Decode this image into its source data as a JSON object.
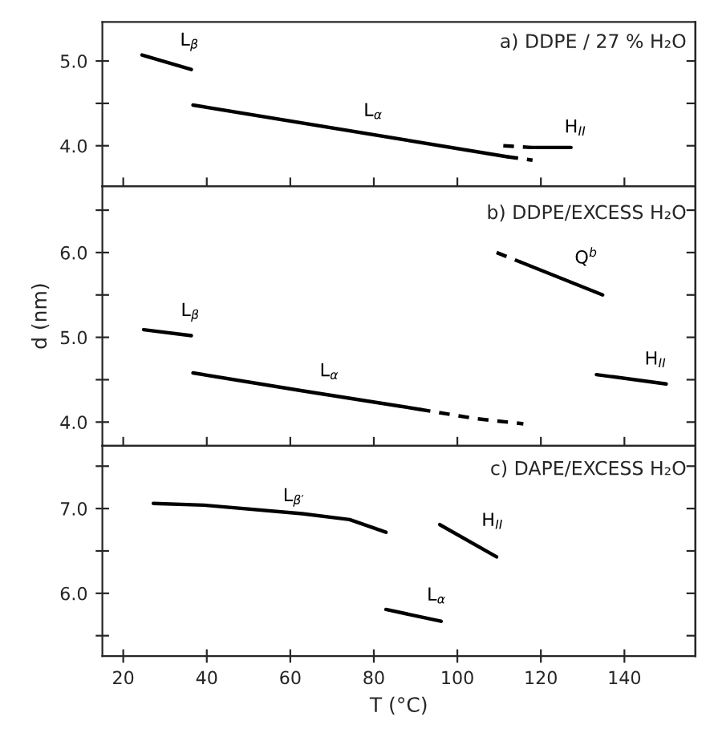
{
  "chart_data": [
    {
      "type": "line",
      "title": "a) DDPE / 27 % H₂O",
      "xlim": [
        15,
        157
      ],
      "ylim": [
        3.52,
        5.46
      ],
      "xticks": [
        20,
        40,
        60,
        80,
        100,
        120,
        140
      ],
      "yticks": [
        {
          "value": 4.0,
          "label": "4.0"
        },
        {
          "value": 4.5,
          "label": null
        },
        {
          "value": 5.0,
          "label": "5.0"
        }
      ],
      "tick_labels": "y",
      "grid": false,
      "legend": false,
      "series": [
        {
          "name": "L$_{β}$",
          "color": "#000000",
          "line_style": "solid",
          "x": [
            24.5,
            36.3
          ],
          "values": [
            5.07,
            4.9
          ]
        },
        {
          "name": "L$_{α}$",
          "color": "#000000",
          "line_style": "solid",
          "x": [
            36.7,
            112
          ],
          "values": [
            4.48,
            3.87
          ]
        },
        {
          "color": "#000000",
          "line_style": "dashed",
          "x": [
            112,
            118
          ],
          "values": [
            3.87,
            3.83
          ]
        },
        {
          "color": "#000000",
          "line_style": "dashed",
          "x": [
            111,
            117.7
          ],
          "values": [
            4.0,
            3.98
          ]
        },
        {
          "name": "H$_{II}$",
          "color": "#000000",
          "line_style": "solid",
          "x": [
            117.7,
            127.2
          ],
          "values": [
            3.98,
            3.98
          ]
        }
      ]
    },
    {
      "type": "line",
      "title": "b) DDPE/EXCESS H₂O",
      "ylabel": "d (nm)",
      "xlim": [
        15,
        157
      ],
      "ylim": [
        3.72,
        6.78
      ],
      "xticks": [
        20,
        40,
        60,
        80,
        100,
        120,
        140
      ],
      "yticks": [
        {
          "value": 4.0,
          "label": "4.0"
        },
        {
          "value": 4.5,
          "label": null
        },
        {
          "value": 5.0,
          "label": "5.0"
        },
        {
          "value": 5.5,
          "label": null
        },
        {
          "value": 6.0,
          "label": "6.0"
        },
        {
          "value": 6.5,
          "label": null
        }
      ],
      "tick_labels": "y",
      "grid": false,
      "legend": false,
      "series": [
        {
          "name": "L$_{β}$",
          "color": "#000000",
          "line_style": "solid",
          "x": [
            24.9,
            36.3
          ],
          "values": [
            5.09,
            5.02
          ]
        },
        {
          "name": "L$_{α}$",
          "color": "#000000",
          "line_style": "solid",
          "x": [
            36.7,
            62.8,
            91
          ],
          "values": [
            4.58,
            4.37,
            4.15
          ]
        },
        {
          "color": "#000000",
          "line_style": "dashed",
          "x": [
            91,
            104.5,
            115.8
          ],
          "values": [
            4.15,
            4.04,
            3.98
          ]
        },
        {
          "color": "#000000",
          "line_style": "dashed",
          "x": [
            109.4,
            115
          ],
          "values": [
            6.0,
            5.89
          ]
        },
        {
          "name": "Q$^{b}$",
          "color": "#000000",
          "line_style": "solid",
          "x": [
            115,
            134.8
          ],
          "values": [
            5.89,
            5.5
          ]
        },
        {
          "name": "H$_{II}$",
          "color": "#000000",
          "line_style": "solid",
          "x": [
            133.3,
            150
          ],
          "values": [
            4.56,
            4.45
          ]
        }
      ]
    },
    {
      "type": "line",
      "title": "c) DAPE/EXCESS H₂O",
      "xlabel": "T (°C)",
      "xlim": [
        15,
        157
      ],
      "ylim": [
        5.26,
        7.74
      ],
      "xticks": [
        20,
        40,
        60,
        80,
        100,
        120,
        140
      ],
      "yticks": [
        {
          "value": 5.5,
          "label": null
        },
        {
          "value": 6.0,
          "label": "6.0"
        },
        {
          "value": 6.5,
          "label": null
        },
        {
          "value": 7.0,
          "label": "7.0"
        },
        {
          "value": 7.5,
          "label": null
        }
      ],
      "grid": false,
      "legend": false,
      "series": [
        {
          "name": "L$_{β′}$",
          "color": "#000000",
          "line_style": "solid",
          "x": [
            27.2,
            39.3,
            62.8,
            74.2,
            82.9
          ],
          "values": [
            7.06,
            7.04,
            6.94,
            6.87,
            6.72
          ]
        },
        {
          "name": "H$_{II}$",
          "color": "#000000",
          "line_style": "solid",
          "x": [
            95.8,
            109.4
          ],
          "values": [
            6.81,
            6.43
          ]
        },
        {
          "name": "L$_{α}$",
          "color": "#000000",
          "line_style": "solid",
          "x": [
            82.9,
            96.1
          ],
          "values": [
            5.81,
            5.67
          ]
        }
      ]
    }
  ]
}
